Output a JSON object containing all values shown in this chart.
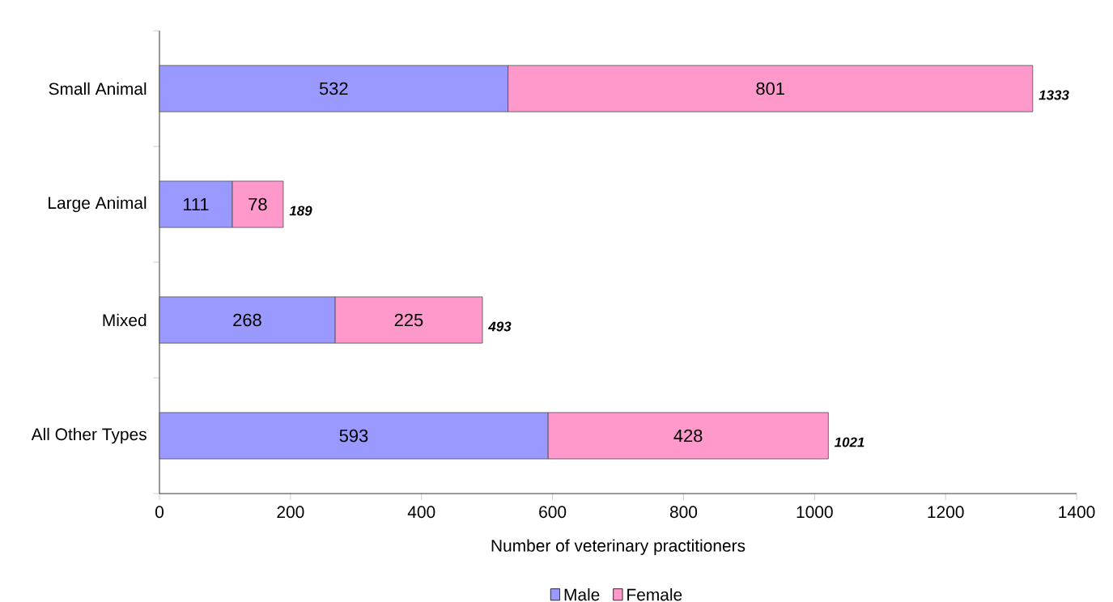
{
  "chart_data": {
    "type": "bar",
    "orientation": "horizontal",
    "stacked": true,
    "xlabel": "Number of veterinary practitioners",
    "categories": [
      "Small Animal",
      "Large Animal",
      "Mixed",
      "All Other Types"
    ],
    "series": [
      {
        "name": "Male",
        "color": "#9999ff",
        "values": [
          532,
          111,
          268,
          593
        ]
      },
      {
        "name": "Female",
        "color": "#ff99cc",
        "values": [
          801,
          78,
          225,
          428
        ]
      }
    ],
    "totals": [
      "1333",
      "189",
      "493",
      "1021"
    ],
    "data_labels": true,
    "xlim": [
      0,
      1400
    ],
    "xticks": [
      0,
      200,
      400,
      600,
      800,
      1000,
      1200,
      1400
    ],
    "legend": "bottom",
    "grid": false
  }
}
